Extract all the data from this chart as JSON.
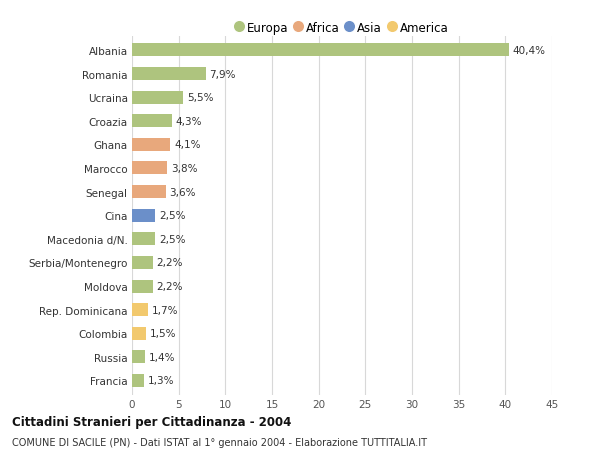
{
  "countries": [
    "Albania",
    "Romania",
    "Ucraina",
    "Croazia",
    "Ghana",
    "Marocco",
    "Senegal",
    "Cina",
    "Macedonia d/N.",
    "Serbia/Montenegro",
    "Moldova",
    "Rep. Dominicana",
    "Colombia",
    "Russia",
    "Francia"
  ],
  "values": [
    40.4,
    7.9,
    5.5,
    4.3,
    4.1,
    3.8,
    3.6,
    2.5,
    2.5,
    2.2,
    2.2,
    1.7,
    1.5,
    1.4,
    1.3
  ],
  "labels": [
    "40,4%",
    "7,9%",
    "5,5%",
    "4,3%",
    "4,1%",
    "3,8%",
    "3,6%",
    "2,5%",
    "2,5%",
    "2,2%",
    "2,2%",
    "1,7%",
    "1,5%",
    "1,4%",
    "1,3%"
  ],
  "continents": [
    "Europa",
    "Europa",
    "Europa",
    "Europa",
    "Africa",
    "Africa",
    "Africa",
    "Asia",
    "Europa",
    "Europa",
    "Europa",
    "America",
    "America",
    "Europa",
    "Europa"
  ],
  "colors": {
    "Europa": "#aec47e",
    "Africa": "#e8a87c",
    "Asia": "#6b8fc9",
    "America": "#f2c96e"
  },
  "xlim": [
    0,
    45
  ],
  "xticks": [
    0,
    5,
    10,
    15,
    20,
    25,
    30,
    35,
    40,
    45
  ],
  "title": "Cittadini Stranieri per Cittadinanza - 2004",
  "subtitle": "COMUNE DI SACILE (PN) - Dati ISTAT al 1° gennaio 2004 - Elaborazione TUTTITALIA.IT",
  "background_color": "#ffffff",
  "grid_color": "#d8d8d8",
  "bar_height": 0.55,
  "legend_order": [
    "Europa",
    "Africa",
    "Asia",
    "America"
  ]
}
